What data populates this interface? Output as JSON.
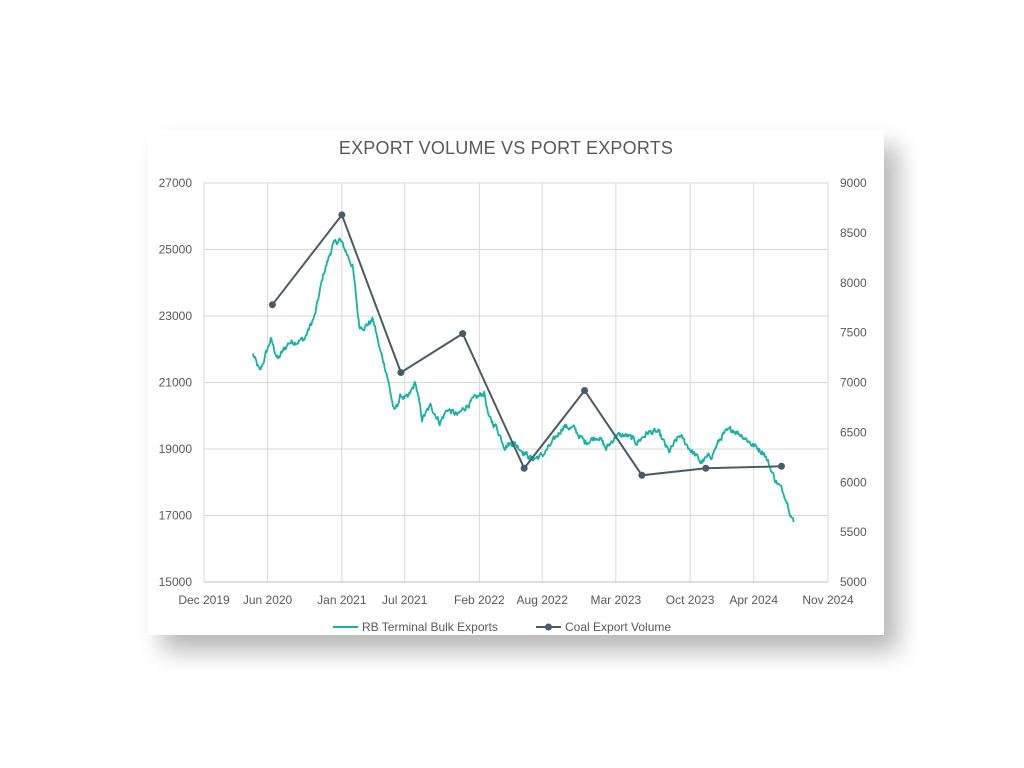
{
  "chart_data": {
    "title": "EXPORT VOLUME VS PORT EXPORTS",
    "x_axis": {
      "type": "date",
      "range": [
        "2019-12-01",
        "2024-11-01"
      ],
      "tick_labels": [
        "Dec 2019",
        "Jun 2020",
        "Jan 2021",
        "Jul 2021",
        "Feb 2022",
        "Aug 2022",
        "Mar 2023",
        "Oct 2023",
        "Apr 2024",
        "Nov 2024"
      ],
      "ticks": [
        "2019-12-01",
        "2020-06-01",
        "2021-01-01",
        "2021-07-01",
        "2022-02-01",
        "2022-08-01",
        "2023-03-01",
        "2023-10-01",
        "2024-04-01",
        "2024-11-01"
      ]
    },
    "y_left": {
      "range": [
        15000,
        27000
      ],
      "tick_labels": [
        "15000",
        "17000",
        "19000",
        "21000",
        "23000",
        "25000",
        "27000"
      ]
    },
    "y_right": {
      "range": [
        5000,
        9000
      ],
      "tick_labels": [
        "5000",
        "5500",
        "6000",
        "6500",
        "7000",
        "7500",
        "8000",
        "8500",
        "9000"
      ]
    },
    "grid": true,
    "legend_position": "bottom",
    "colors": {
      "bulk": "#17b0a3",
      "coal": "#4a5b68"
    },
    "series": [
      {
        "name": "RB Terminal Bulk Exports",
        "axis": "left",
        "type": "line",
        "points": [
          [
            "2020-04-20",
            21850
          ],
          [
            "2020-05-10",
            21300
          ],
          [
            "2020-06-10",
            22300
          ],
          [
            "2020-07-01",
            21700
          ],
          [
            "2020-08-01",
            22200
          ],
          [
            "2020-09-15",
            22300
          ],
          [
            "2020-10-15",
            23000
          ],
          [
            "2020-11-10",
            24300
          ],
          [
            "2020-12-05",
            25100
          ],
          [
            "2020-12-25",
            25300
          ],
          [
            "2021-01-10",
            25000
          ],
          [
            "2021-02-01",
            24500
          ],
          [
            "2021-02-20",
            22700
          ],
          [
            "2021-03-10",
            22700
          ],
          [
            "2021-04-01",
            22900
          ],
          [
            "2021-04-20",
            22000
          ],
          [
            "2021-05-10",
            21300
          ],
          [
            "2021-06-01",
            20100
          ],
          [
            "2021-06-20",
            20600
          ],
          [
            "2021-07-10",
            20500
          ],
          [
            "2021-08-01",
            21000
          ],
          [
            "2021-08-20",
            19900
          ],
          [
            "2021-09-15",
            20300
          ],
          [
            "2021-10-10",
            19800
          ],
          [
            "2021-11-01",
            20200
          ],
          [
            "2021-12-01",
            20000
          ],
          [
            "2021-12-25",
            20300
          ],
          [
            "2022-01-20",
            20500
          ],
          [
            "2022-02-15",
            20700
          ],
          [
            "2022-03-01",
            19900
          ],
          [
            "2022-03-20",
            19700
          ],
          [
            "2022-04-15",
            19100
          ],
          [
            "2022-05-10",
            19200
          ],
          [
            "2022-06-01",
            19000
          ],
          [
            "2022-07-01",
            18700
          ],
          [
            "2022-08-01",
            18800
          ],
          [
            "2022-09-01",
            19200
          ],
          [
            "2022-10-01",
            19700
          ],
          [
            "2022-11-01",
            19600
          ],
          [
            "2022-12-01",
            19200
          ],
          [
            "2023-01-10",
            19400
          ],
          [
            "2023-02-01",
            19000
          ],
          [
            "2023-03-01",
            19400
          ],
          [
            "2023-04-01",
            19400
          ],
          [
            "2023-05-01",
            19200
          ],
          [
            "2023-06-01",
            19500
          ],
          [
            "2023-07-01",
            19500
          ],
          [
            "2023-08-01",
            18900
          ],
          [
            "2023-09-01",
            19400
          ],
          [
            "2023-10-01",
            19000
          ],
          [
            "2023-11-01",
            18600
          ],
          [
            "2023-12-01",
            18800
          ],
          [
            "2024-01-01",
            19400
          ],
          [
            "2024-02-01",
            19600
          ],
          [
            "2024-03-01",
            19400
          ],
          [
            "2024-04-01",
            19100
          ],
          [
            "2024-05-01",
            18900
          ],
          [
            "2024-06-01",
            18100
          ],
          [
            "2024-07-01",
            17600
          ],
          [
            "2024-07-25",
            16800
          ]
        ]
      },
      {
        "name": "Coal Export Volume",
        "axis": "right",
        "type": "line-markers",
        "points": [
          [
            "2020-06-15",
            7780
          ],
          [
            "2021-01-01",
            8680
          ],
          [
            "2021-06-20",
            7100
          ],
          [
            "2021-12-15",
            7490
          ],
          [
            "2022-06-10",
            6140
          ],
          [
            "2022-12-01",
            6920
          ],
          [
            "2023-05-15",
            6070
          ],
          [
            "2023-11-15",
            6140
          ],
          [
            "2024-06-20",
            6160
          ]
        ]
      }
    ]
  }
}
